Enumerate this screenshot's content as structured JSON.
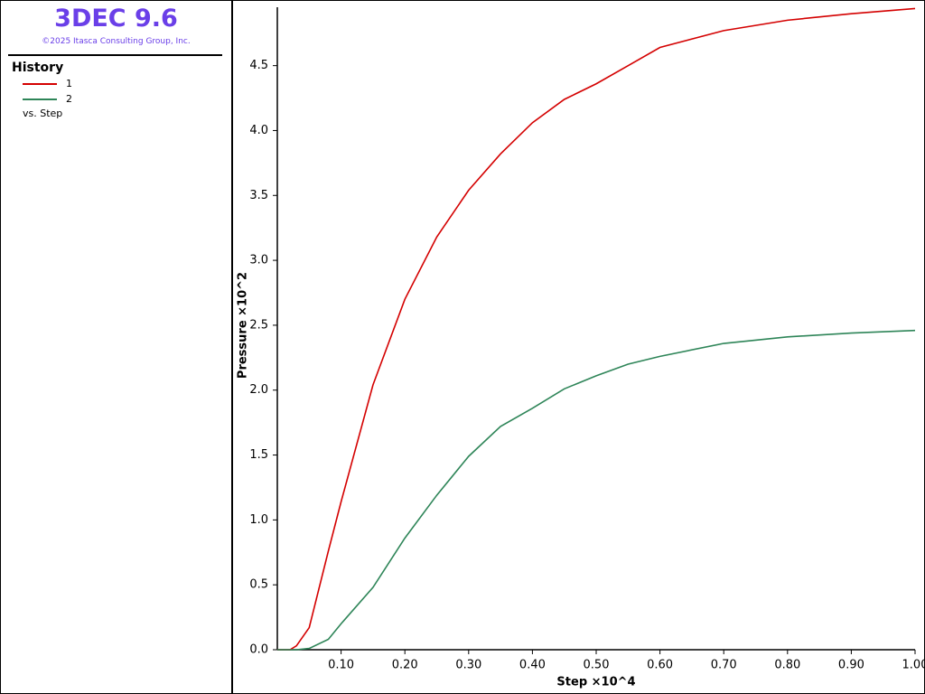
{
  "sidebar": {
    "app_title": "3DEC 9.6",
    "copyright": "©2025 Itasca Consulting Group, Inc.",
    "heading": "History",
    "versus": "vs. Step"
  },
  "chart_data": {
    "type": "line",
    "x_label": "Step ×10^4",
    "y_label": "Pressure ×10^2",
    "x": [
      0,
      0.02,
      0.03,
      0.05,
      0.08,
      0.1,
      0.15,
      0.2,
      0.25,
      0.3,
      0.35,
      0.4,
      0.45,
      0.5,
      0.55,
      0.6,
      0.7,
      0.8,
      0.9,
      1.0
    ],
    "series": [
      {
        "name": "1",
        "color": "#d40000",
        "values": [
          0,
          0,
          0.03,
          0.17,
          0.76,
          1.14,
          2.04,
          2.7,
          3.18,
          3.54,
          3.82,
          4.06,
          4.24,
          4.36,
          4.5,
          4.64,
          4.77,
          4.85,
          4.9,
          4.94
        ]
      },
      {
        "name": "2",
        "color": "#2e8558",
        "values": [
          0,
          0,
          0,
          0.01,
          0.08,
          0.2,
          0.48,
          0.86,
          1.19,
          1.49,
          1.72,
          1.86,
          2.01,
          2.11,
          2.2,
          2.26,
          2.36,
          2.41,
          2.44,
          2.46
        ]
      }
    ],
    "xlim": [
      0,
      1.0
    ],
    "xticks": [
      {
        "value": 0.1,
        "label": "0.10"
      },
      {
        "value": 0.2,
        "label": "0.20"
      },
      {
        "value": 0.3,
        "label": "0.30"
      },
      {
        "value": 0.4,
        "label": "0.40"
      },
      {
        "value": 0.5,
        "label": "0.50"
      },
      {
        "value": 0.6,
        "label": "0.60"
      },
      {
        "value": 0.7,
        "label": "0.70"
      },
      {
        "value": 0.8,
        "label": "0.80"
      },
      {
        "value": 0.9,
        "label": "0.90"
      },
      {
        "value": 1.0,
        "label": "1.00"
      }
    ],
    "ylim": [
      0,
      4.95
    ],
    "yticks": [
      {
        "value": 0,
        "label": "0.0"
      },
      0.5,
      {
        "value": 1,
        "label": "1.0"
      },
      1.5,
      {
        "value": 2,
        "label": "2.0"
      },
      2.5,
      {
        "value": 3,
        "label": "3.0"
      },
      3.5,
      {
        "value": 4,
        "label": "4.0"
      },
      4.5
    ],
    "grid": false
  }
}
